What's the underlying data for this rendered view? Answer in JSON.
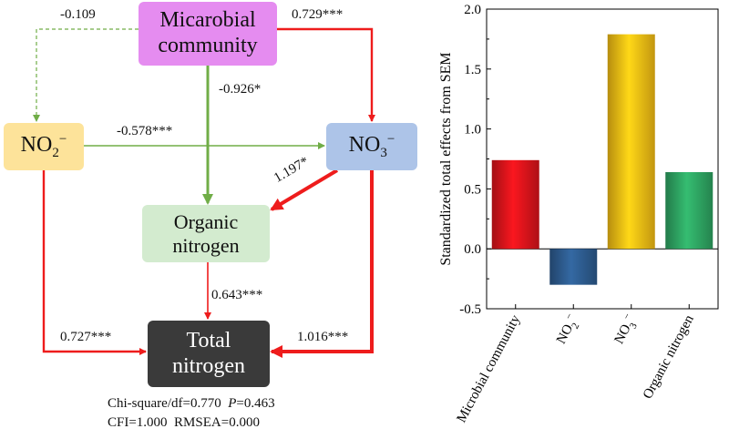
{
  "sem_diagram": {
    "nodes": {
      "microbial": {
        "line1": "Micarobial",
        "line2": "community"
      },
      "no2": {
        "base": "NO",
        "sub": "2",
        "sup": "−"
      },
      "no3": {
        "base": "NO",
        "sub": "3",
        "sup": "−"
      },
      "organic": {
        "line1": "Organic",
        "line2": "nitrogen"
      },
      "total": {
        "line1": "Total",
        "line2": "nitrogen"
      }
    },
    "paths": [
      {
        "from": "microbial",
        "to": "no2",
        "coef": "-0.109",
        "sign": "negative",
        "significant": false
      },
      {
        "from": "microbial",
        "to": "no3",
        "coef": "0.729***",
        "sign": "positive",
        "significant": true
      },
      {
        "from": "microbial",
        "to": "organic",
        "coef": "-0.926*",
        "sign": "negative",
        "significant": true
      },
      {
        "from": "no2",
        "to": "no3",
        "coef": "-0.578***",
        "sign": "negative",
        "significant": true
      },
      {
        "from": "no3",
        "to": "organic",
        "coef": "1.197*",
        "sign": "positive",
        "significant": true
      },
      {
        "from": "organic",
        "to": "total",
        "coef": "0.643***",
        "sign": "positive",
        "significant": true
      },
      {
        "from": "no2",
        "to": "total",
        "coef": "0.727***",
        "sign": "positive",
        "significant": true
      },
      {
        "from": "no3",
        "to": "total",
        "coef": "1.016***",
        "sign": "positive",
        "significant": true
      }
    ],
    "fit": {
      "line1_prefix": "Chi-square/df=0.770",
      "p_label": "P",
      "p_value": "=0.463",
      "line2": "CFI=1.000  RMSEA=0.000"
    },
    "colors": {
      "positive": "#ee1c1c",
      "negative": "#70ad47"
    }
  },
  "chart_data": {
    "type": "bar",
    "ylabel": "Standardized total effects from SEM",
    "ylim": [
      -0.5,
      2.0
    ],
    "yticks": [
      "-0.5",
      "0.0",
      "0.5",
      "1.0",
      "1.5",
      "2.0"
    ],
    "categories": [
      {
        "label": "Microbial community",
        "base": "",
        "sub": "",
        "sup": ""
      },
      {
        "label": "",
        "base": "NO",
        "sub": "2",
        "sup": "−"
      },
      {
        "label": "",
        "base": "NO",
        "sub": "3",
        "sup": "−"
      },
      {
        "label": "Organic nitrogen",
        "base": "",
        "sub": "",
        "sup": ""
      }
    ],
    "values": [
      0.74,
      -0.3,
      1.79,
      0.64
    ],
    "colors": [
      "#d9141b",
      "#2d5b8e",
      "#f2bc14",
      "#2ea462"
    ]
  }
}
